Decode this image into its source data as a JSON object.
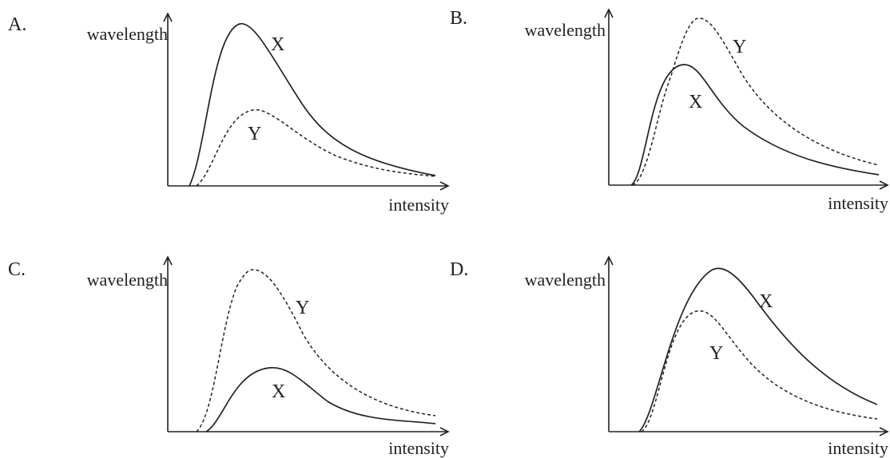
{
  "chart_data": [
    {
      "type": "line",
      "option": "A.",
      "ylabel": "wavelength",
      "xlabel": "intensity",
      "series": [
        {
          "name": "X",
          "style": "solid",
          "peak": 1.0,
          "peak_x": 0.28
        },
        {
          "name": "Y",
          "style": "dashed",
          "peak": 0.47,
          "peak_x": 0.33
        }
      ]
    },
    {
      "type": "line",
      "option": "B.",
      "ylabel": "wavelength",
      "xlabel": "intensity",
      "series": [
        {
          "name": "X",
          "style": "solid",
          "peak": 0.72,
          "peak_x": 0.24
        },
        {
          "name": "Y",
          "style": "dashed",
          "peak": 1.0,
          "peak_x": 0.31
        }
      ]
    },
    {
      "type": "line",
      "option": "C.",
      "ylabel": "wavelength",
      "xlabel": "intensity",
      "series": [
        {
          "name": "X",
          "style": "solid",
          "peak": 0.47,
          "peak_x": 0.38
        },
        {
          "name": "Y",
          "style": "dashed",
          "peak": 1.0,
          "peak_x": 0.31
        }
      ]
    },
    {
      "type": "line",
      "option": "D.",
      "ylabel": "wavelength",
      "xlabel": "intensity",
      "series": [
        {
          "name": "X",
          "style": "solid",
          "peak": 1.0,
          "peak_x": 0.36
        },
        {
          "name": "Y",
          "style": "dashed",
          "peak": 0.75,
          "peak_x": 0.26
        }
      ]
    }
  ]
}
